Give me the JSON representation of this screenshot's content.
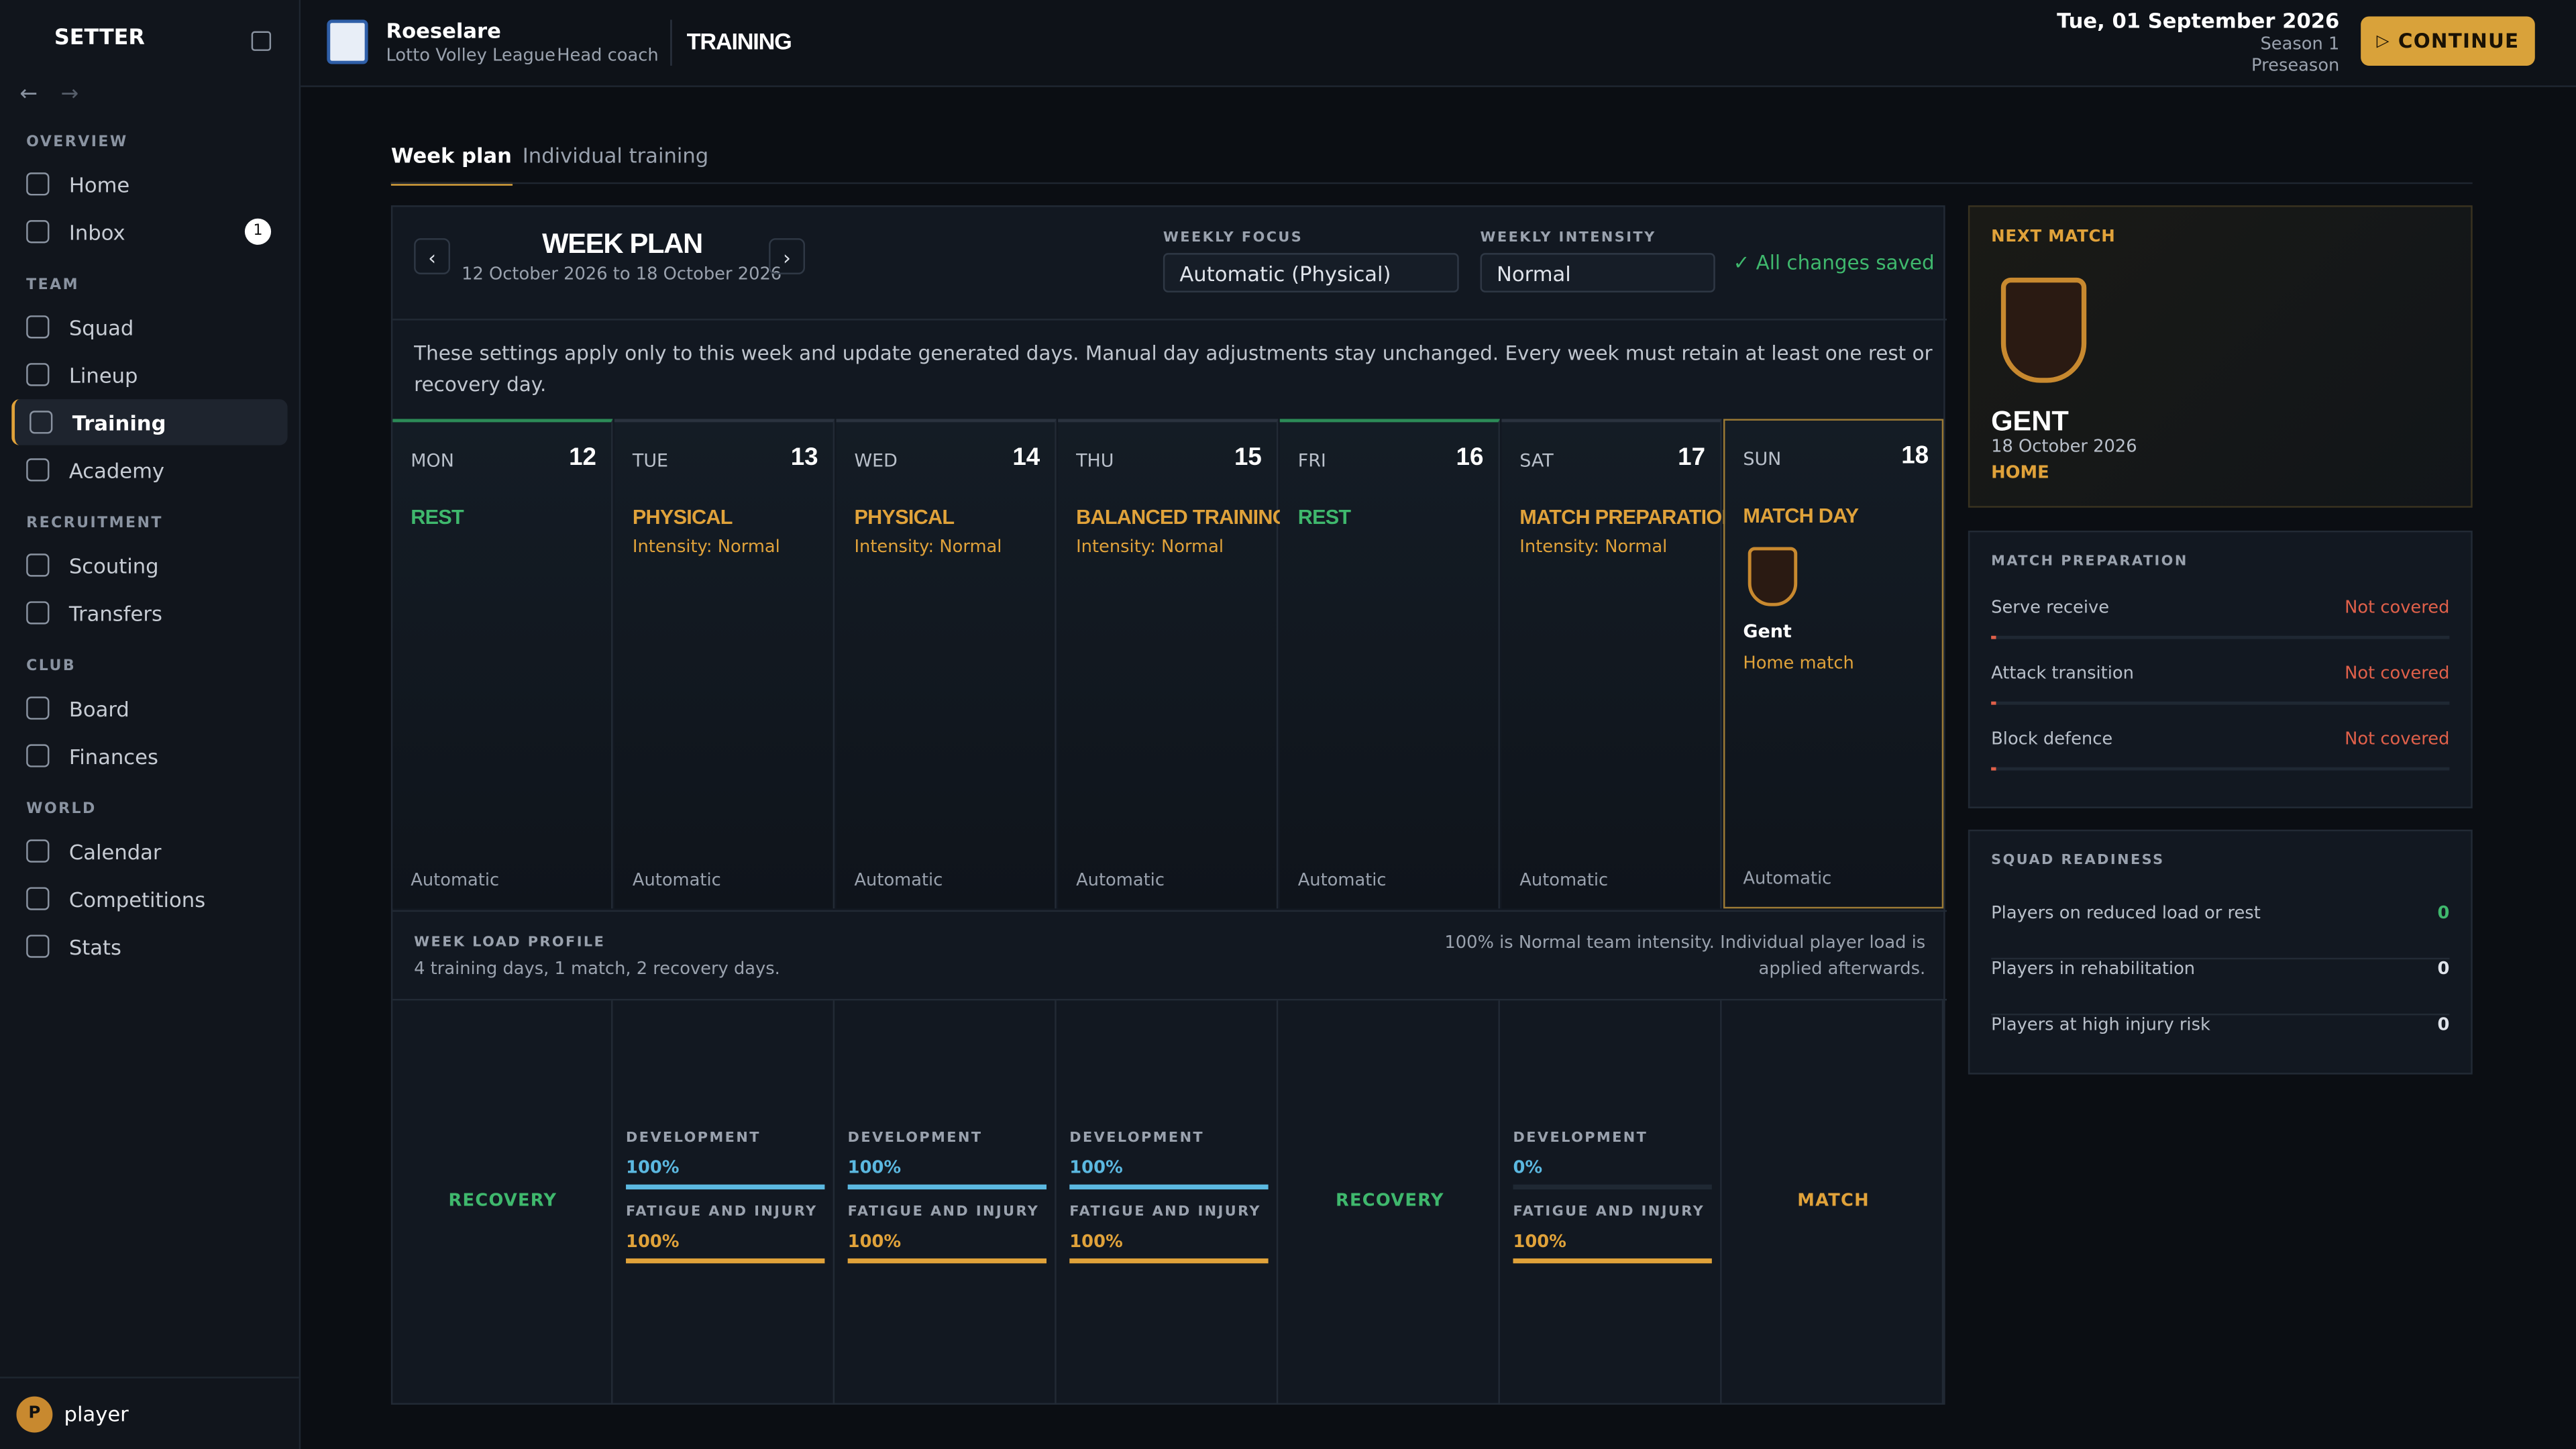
{
  "sidebar": {
    "brand": "SETTER",
    "sections": [
      {
        "title": "OVERVIEW",
        "items": [
          {
            "label": "Home"
          },
          {
            "label": "Inbox",
            "badge": 1
          }
        ]
      },
      {
        "title": "TEAM",
        "items": [
          {
            "label": "Squad"
          },
          {
            "label": "Lineup"
          },
          {
            "label": "Training",
            "active": true
          },
          {
            "label": "Academy"
          }
        ]
      },
      {
        "title": "RECRUITMENT",
        "items": [
          {
            "label": "Scouting"
          },
          {
            "label": "Transfers"
          }
        ]
      },
      {
        "title": "CLUB",
        "items": [
          {
            "label": "Board"
          },
          {
            "label": "Finances"
          }
        ]
      },
      {
        "title": "WORLD",
        "items": [
          {
            "label": "Calendar"
          },
          {
            "label": "Competitions"
          },
          {
            "label": "Stats"
          }
        ]
      }
    ],
    "user": {
      "initial": "P",
      "name": "player"
    }
  },
  "header": {
    "team": "Roeselare",
    "league": "Lotto Volley League",
    "role": "Head coach",
    "page": "TRAINING",
    "date": "Tue, 01 September 2026",
    "season": "Season 1",
    "phase": "Preseason",
    "action": "CONTINUE"
  },
  "tabs": [
    "Week plan",
    "Individual training"
  ],
  "week_plan": {
    "title": "WEEK PLAN",
    "range": "12 October 2026 to 18 October 2026",
    "focus_label": "WEEKLY FOCUS",
    "focus": "Automatic (Physical)",
    "intensity_label": "WEEKLY INTENSITY",
    "intensity": "Normal",
    "saved": "✓ All changes saved",
    "note": "These settings apply only to this week and update generated days. Manual day adjustments stay unchanged. Every week must retain at least one rest or recovery day.",
    "days": [
      {
        "dow": "MON",
        "date": 12,
        "type": "REST",
        "mode": "Automatic"
      },
      {
        "dow": "TUE",
        "date": 13,
        "type": "PHYSICAL",
        "intensity": "Intensity: Normal",
        "mode": "Automatic"
      },
      {
        "dow": "WED",
        "date": 14,
        "type": "PHYSICAL",
        "intensity": "Intensity: Normal",
        "mode": "Automatic"
      },
      {
        "dow": "THU",
        "date": 15,
        "type": "BALANCED TRAINING",
        "intensity": "Intensity: Normal",
        "mode": "Automatic"
      },
      {
        "dow": "FRI",
        "date": 16,
        "type": "REST",
        "mode": "Automatic"
      },
      {
        "dow": "SAT",
        "date": 17,
        "type": "MATCH PREPARATION",
        "intensity": "Intensity: Normal",
        "mode": "Automatic"
      },
      {
        "dow": "SUN",
        "date": 18,
        "type": "MATCH DAY",
        "opponent": "Gent",
        "venue": "Home match",
        "mode": "Automatic"
      }
    ]
  },
  "load_profile": {
    "title": "WEEK LOAD PROFILE",
    "summary": "4 training days, 1 match, 2 recovery days.",
    "note": "100% is Normal team intensity. Individual player load is applied afterwards.",
    "columns": [
      {
        "label": "RECOVERY"
      },
      {
        "dev_label": "DEVELOPMENT",
        "dev": "100%",
        "fat_label": "FATIGUE AND INJURY",
        "fat": "100%"
      },
      {
        "dev_label": "DEVELOPMENT",
        "dev": "100%",
        "fat_label": "FATIGUE AND INJURY",
        "fat": "100%"
      },
      {
        "dev_label": "DEVELOPMENT",
        "dev": "100%",
        "fat_label": "FATIGUE AND INJURY",
        "fat": "100%"
      },
      {
        "label": "RECOVERY"
      },
      {
        "dev_label": "DEVELOPMENT",
        "dev": "0%",
        "fat_label": "FATIGUE AND INJURY",
        "fat": "100%"
      },
      {
        "label": "MATCH"
      }
    ]
  },
  "next_match": {
    "label": "NEXT MATCH",
    "team": "GENT",
    "date": "18 October 2026",
    "venue": "HOME"
  },
  "match_prep": {
    "title": "MATCH PREPARATION",
    "items": [
      {
        "label": "Serve receive",
        "status": "Not covered"
      },
      {
        "label": "Attack transition",
        "status": "Not covered"
      },
      {
        "label": "Block defence",
        "status": "Not covered"
      }
    ]
  },
  "squad_readiness": {
    "title": "SQUAD READINESS",
    "items": [
      {
        "label": "Players on reduced load or rest",
        "value": 0
      },
      {
        "label": "Players in rehabilitation",
        "value": 0
      },
      {
        "label": "Players at high injury risk",
        "value": 0
      }
    ]
  }
}
